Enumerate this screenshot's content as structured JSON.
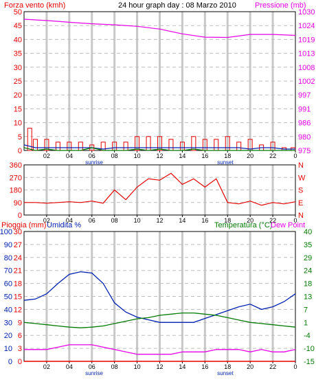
{
  "header": {
    "left_label": "Forza vento (kmh)",
    "title": "24 hour graph day : 08 Marzo 2010",
    "right_label": "Pressione (mb)"
  },
  "colors": {
    "red": "#e60000",
    "magenta": "#e600e6",
    "blue": "#0020b0",
    "green": "#007a00",
    "grid": "#bdbdbd",
    "daylight_band": "#c8c8c8"
  },
  "x_axis": {
    "ticks": [
      "02",
      "04",
      "06",
      "08",
      "10",
      "12",
      "14",
      "16",
      "18",
      "20",
      "22",
      "0"
    ],
    "sunrise_label": "sunrise",
    "sunset_label": "sunset",
    "sunrise_hour": 6.2,
    "sunset_hour": 17.8
  },
  "chart_data": [
    {
      "type": "line",
      "panel": "wind",
      "title": "24 hour graph day : 08 Marzo 2010",
      "x_unit": "hour",
      "left_axis": {
        "label": "Forza vento (kmh)",
        "ticks": [
          "0",
          "5",
          "10",
          "15",
          "20",
          "25",
          "30",
          "35",
          "40",
          "45",
          "50"
        ],
        "range": [
          0,
          50
        ]
      },
      "right_axis": {
        "label": "Pressione (mb)",
        "ticks": [
          "975",
          "980",
          "986",
          "991",
          "997",
          "1002",
          "1008",
          "1013",
          "1019",
          "1024",
          "1030"
        ],
        "range": [
          975,
          1030
        ]
      },
      "series": [
        {
          "name": "Pressione (mb)",
          "axis": "right",
          "color": "#e600e6",
          "x": [
            0,
            2,
            4,
            6,
            8,
            10,
            12,
            14,
            16,
            18,
            20,
            22,
            24
          ],
          "y": [
            1027,
            1026.5,
            1025.8,
            1025.2,
            1024.8,
            1024.2,
            1023.1,
            1021.2,
            1019.9,
            1019.8,
            1021.0,
            1021.0,
            1020.6
          ]
        },
        {
          "name": "Forza vento (kmh)",
          "axis": "left",
          "color": "#e60000",
          "style": "bars",
          "x": [
            0.5,
            1,
            2,
            3,
            4,
            5,
            6,
            7,
            8,
            9,
            10,
            11,
            12,
            13,
            14,
            15,
            16,
            17,
            18,
            19,
            20,
            21,
            22,
            23,
            23.8
          ],
          "y": [
            8,
            4,
            4,
            3,
            3,
            3,
            2,
            3,
            3,
            3,
            5,
            5,
            5,
            4,
            3,
            5,
            4,
            4,
            5,
            3,
            4,
            2,
            3,
            1,
            1
          ]
        },
        {
          "name": "",
          "axis": "left",
          "color": "#0020b0",
          "x": [
            0,
            1,
            2,
            3,
            4,
            5,
            6,
            7,
            8,
            9,
            10,
            11,
            12,
            13,
            14,
            15,
            16,
            17,
            18,
            19,
            20,
            21,
            22,
            23,
            24
          ],
          "y": [
            2,
            1,
            1,
            1,
            1,
            1,
            1,
            0.5,
            1,
            1,
            1,
            1,
            1,
            1,
            1,
            1,
            1,
            1,
            1,
            1,
            0.5,
            1,
            1,
            0.5,
            0.5
          ]
        },
        {
          "name": "",
          "axis": "left",
          "color": "#007a00",
          "x": [
            0,
            1,
            2,
            3,
            4,
            5,
            6,
            7,
            8,
            9,
            10,
            11,
            12,
            13,
            14,
            15,
            16,
            17,
            18,
            19,
            20,
            21,
            22,
            23,
            24
          ],
          "y": [
            1,
            0,
            0.5,
            0,
            0,
            0,
            1,
            0,
            0,
            0,
            0.5,
            0,
            0.5,
            0,
            0,
            0.5,
            0,
            0,
            0,
            0,
            0,
            0,
            0,
            0,
            0
          ]
        }
      ]
    },
    {
      "type": "line",
      "panel": "wind_direction",
      "x_unit": "hour",
      "left_axis": {
        "ticks": [
          "0",
          "90",
          "180",
          "270",
          "360"
        ],
        "range": [
          0,
          360
        ]
      },
      "right_axis": {
        "ticks": [
          "N",
          "E",
          "S",
          "W",
          "N"
        ]
      },
      "series": [
        {
          "name": "",
          "color": "#e60000",
          "x": [
            0,
            1,
            2,
            3,
            4,
            5,
            6,
            7,
            8,
            9,
            10,
            11,
            12,
            13,
            14,
            15,
            16,
            17,
            18,
            19,
            20,
            21,
            22,
            23,
            24
          ],
          "y": [
            90,
            90,
            85,
            90,
            95,
            90,
            100,
            85,
            180,
            110,
            200,
            260,
            250,
            300,
            220,
            260,
            200,
            260,
            90,
            80,
            100,
            70,
            90,
            80,
            95
          ]
        }
      ]
    },
    {
      "type": "line",
      "panel": "rain_humidity_temperature",
      "x_unit": "hour",
      "left_axis": {
        "label": "Pioggia (mm)",
        "ticks": [
          "0",
          "10",
          "20",
          "30",
          "40",
          "50",
          "60",
          "70",
          "80",
          "90",
          "100"
        ],
        "range": [
          0,
          100
        ]
      },
      "left_axis_2": {
        "label": "Umidita %",
        "ticks": [
          "0",
          "3",
          "6",
          "9",
          "12",
          "15",
          "18",
          "21",
          "24",
          "27",
          "30"
        ],
        "range": [
          0,
          30
        ]
      },
      "right_axis": {
        "label": "Temperatura (°C)",
        "ticks": [
          "-15",
          "-10",
          "-4",
          "1",
          "7",
          "13",
          "18",
          "24",
          "29",
          "35",
          "40"
        ],
        "range": [
          -15,
          40
        ]
      },
      "right_label_2": "Dew Point",
      "series": [
        {
          "name": "Umidita %",
          "axis": "left",
          "color": "#0020b0",
          "x": [
            0,
            1,
            2,
            3,
            4,
            5,
            6,
            7,
            8,
            9,
            10,
            11,
            12,
            13,
            14,
            15,
            16,
            17,
            18,
            19,
            20,
            21,
            22,
            23,
            24
          ],
          "y": [
            47,
            48,
            52,
            60,
            67,
            69,
            68,
            60,
            45,
            38,
            34,
            32,
            30,
            30,
            30,
            30,
            33,
            36,
            39,
            42,
            44,
            40,
            42,
            46,
            52
          ]
        },
        {
          "name": "Temperatura (°C)",
          "axis": "right",
          "color": "#007a00",
          "x": [
            0,
            1,
            2,
            3,
            4,
            5,
            6,
            7,
            8,
            9,
            10,
            11,
            12,
            13,
            14,
            15,
            16,
            17,
            18,
            19,
            20,
            21,
            22,
            23,
            24
          ],
          "y": [
            1.5,
            1.0,
            0.5,
            0,
            -0.5,
            -0.8,
            -0.5,
            0,
            1,
            2,
            3,
            3.5,
            4.5,
            5,
            5.5,
            5.5,
            5,
            4.5,
            3.5,
            2.5,
            1.5,
            1,
            0.5,
            0,
            -0.5
          ]
        },
        {
          "name": "Dew Point",
          "axis": "right",
          "color": "#e600e6",
          "x": [
            0,
            1,
            2,
            3,
            4,
            5,
            6,
            7,
            8,
            9,
            10,
            11,
            12,
            13,
            14,
            15,
            16,
            17,
            18,
            19,
            20,
            21,
            22,
            23,
            24
          ],
          "y": [
            -10,
            -10,
            -10,
            -9,
            -8,
            -8,
            -8,
            -9,
            -10,
            -11,
            -12,
            -12,
            -12,
            -12,
            -11,
            -11,
            -11,
            -10,
            -10,
            -10,
            -11,
            -10,
            -11,
            -11,
            -10
          ]
        },
        {
          "name": "Pioggia (mm)",
          "axis": "left",
          "color": "#e60000",
          "x": [
            0,
            24
          ],
          "y": [
            0,
            0
          ]
        }
      ]
    }
  ]
}
